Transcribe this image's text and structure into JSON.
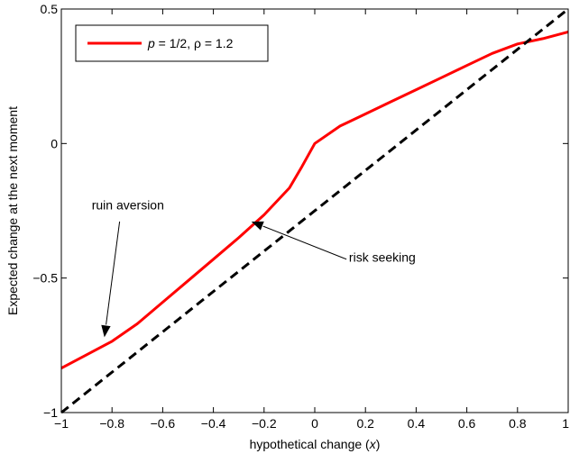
{
  "chart_data": {
    "type": "line",
    "title": "",
    "xlabel_prefix": "hypothetical change (",
    "xlabel_var": "x",
    "xlabel_suffix": ")",
    "ylabel": "Expected change at the next moment",
    "xlim": [
      -1,
      1
    ],
    "ylim": [
      -1,
      0.5
    ],
    "x_ticks": [
      -1,
      -0.8,
      -0.6,
      -0.4,
      -0.2,
      0,
      0.2,
      0.4,
      0.6,
      0.8,
      1
    ],
    "x_tick_labels": [
      "−1",
      "−0.8",
      "−0.6",
      "−0.4",
      "−0.2",
      "0",
      "0.2",
      "0.4",
      "0.6",
      "0.8",
      "1"
    ],
    "y_ticks": [
      -1,
      -0.5,
      0,
      0.5
    ],
    "y_tick_labels": [
      "−1",
      "−0.5",
      "0",
      "0.5"
    ],
    "grid": false,
    "legend_position": "top-left",
    "series": [
      {
        "name_p": "p",
        "name_rest": " = 1/2,  ρ = 1.2",
        "color": "#ff0000",
        "style": "solid",
        "x": [
          -1,
          -0.9,
          -0.8,
          -0.7,
          -0.6,
          -0.5,
          -0.4,
          -0.3,
          -0.2,
          -0.1,
          -0.05,
          0,
          0.1,
          0.2,
          0.3,
          0.4,
          0.5,
          0.6,
          0.7,
          0.8,
          0.9,
          1
        ],
        "y": [
          -0.835,
          -0.785,
          -0.735,
          -0.67,
          -0.59,
          -0.51,
          -0.43,
          -0.35,
          -0.265,
          -0.165,
          -0.085,
          0,
          0.065,
          0.11,
          0.155,
          0.2,
          0.245,
          0.29,
          0.335,
          0.37,
          0.39,
          0.415
        ]
      },
      {
        "color": "#000000",
        "style": "dashed",
        "x": [
          -1,
          1
        ],
        "y": [
          -1,
          0.5
        ]
      }
    ],
    "annotations": [
      {
        "text": "ruin aversion",
        "text_x": -0.88,
        "text_y": -0.245,
        "arrow_from": [
          -0.77,
          -0.29
        ],
        "arrow_to": [
          -0.83,
          -0.72
        ]
      },
      {
        "text": "risk seeking",
        "text_x": 0.135,
        "text_y": -0.44,
        "arrow_from": [
          0.125,
          -0.43
        ],
        "arrow_to": [
          -0.25,
          -0.29
        ]
      }
    ]
  }
}
